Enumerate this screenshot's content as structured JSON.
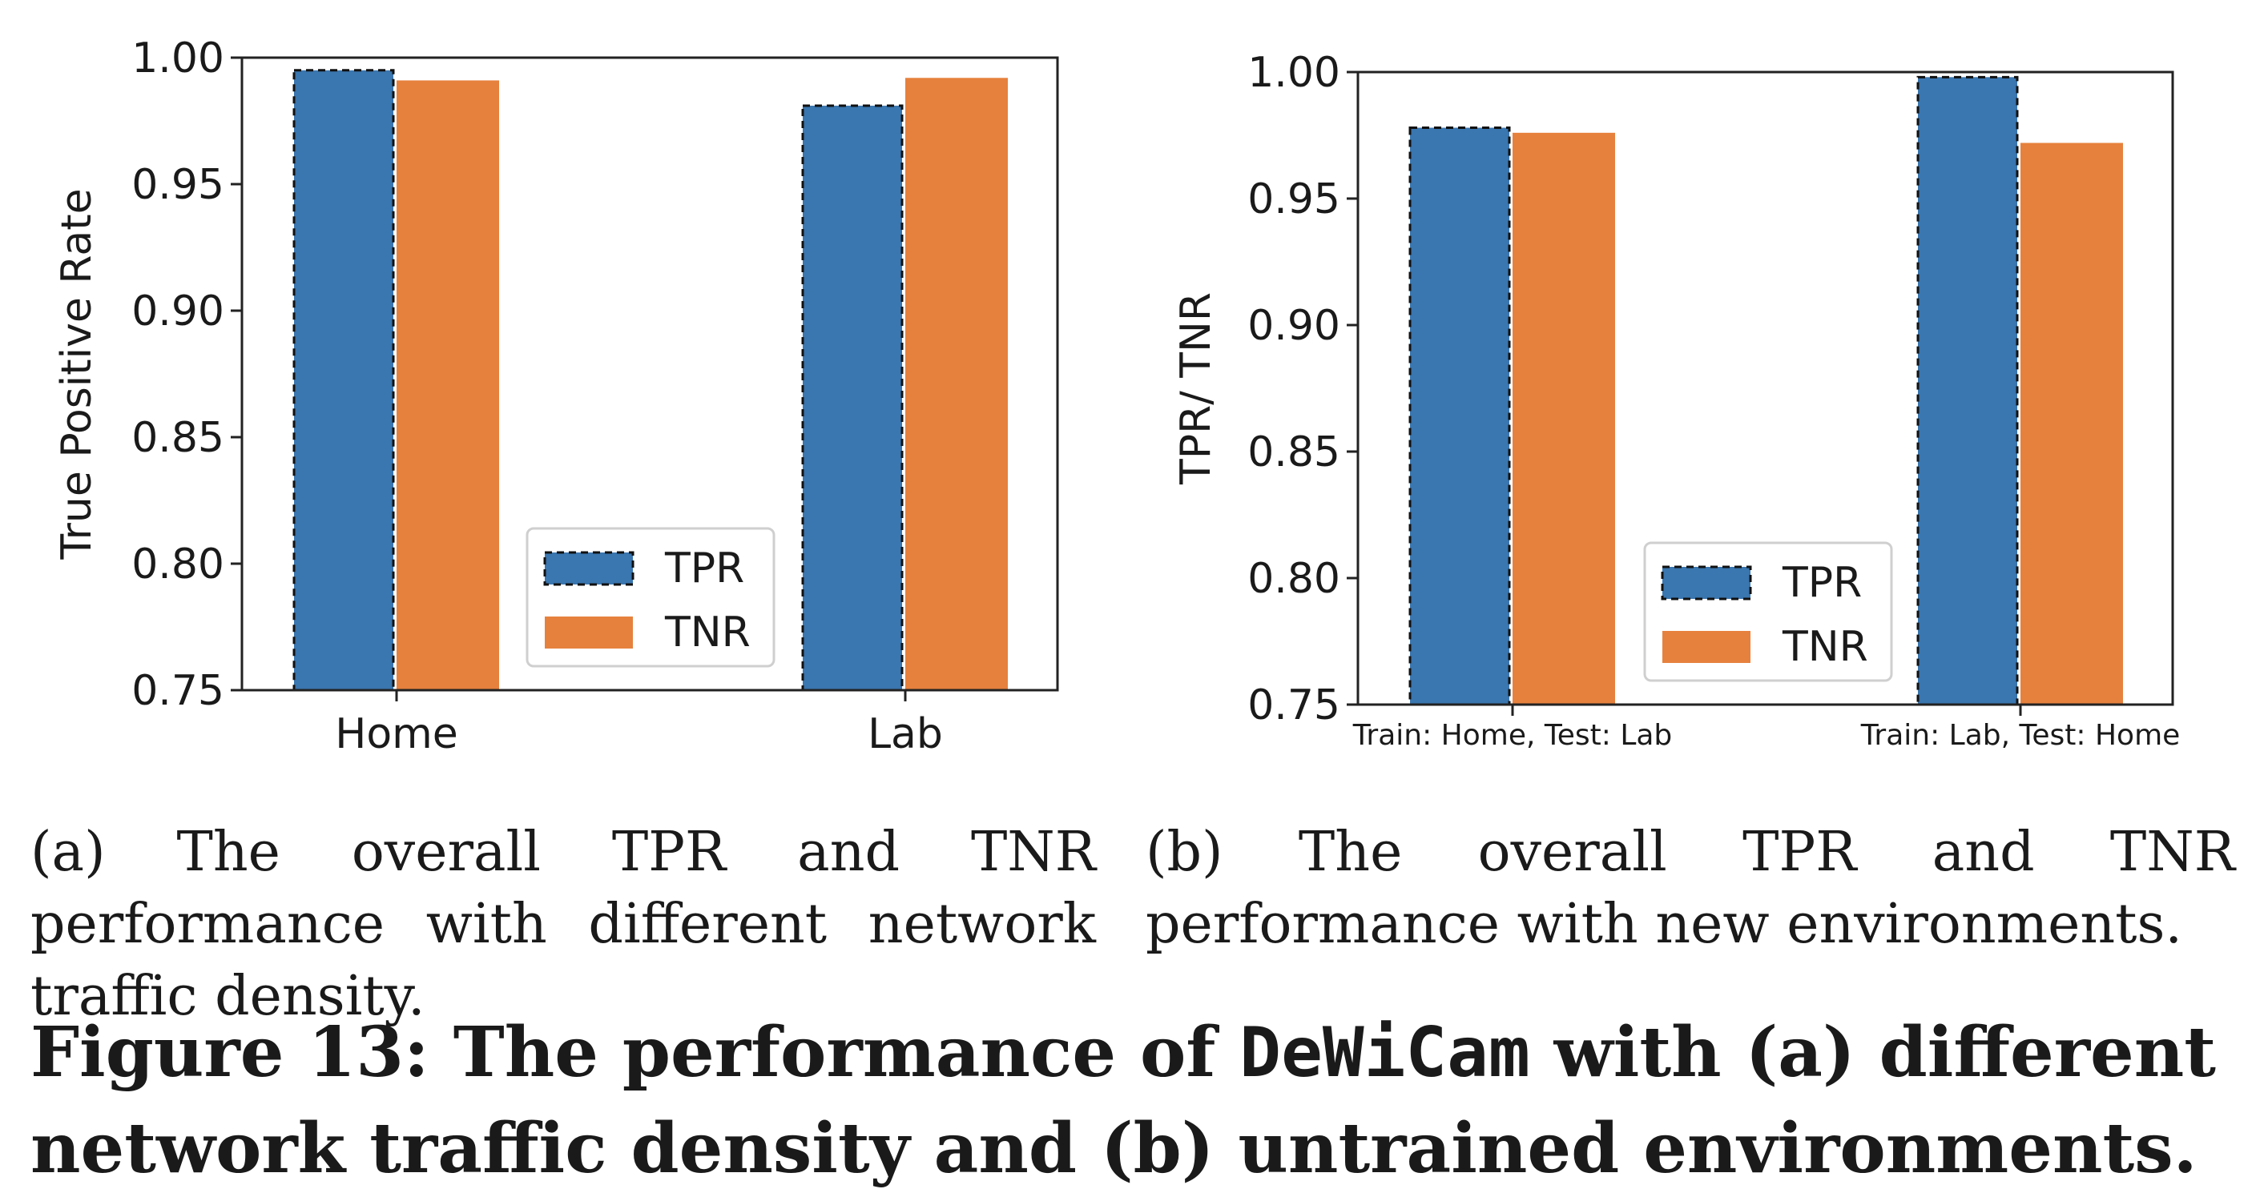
{
  "chart_data": [
    {
      "type": "bar",
      "categories": [
        "Home",
        "Lab"
      ],
      "series": [
        {
          "name": "TPR",
          "values": [
            0.995,
            0.981
          ]
        },
        {
          "name": "TNR",
          "values": [
            0.991,
            0.992
          ]
        }
      ],
      "ylabel": "True Positive Rate",
      "ylim": [
        0.75,
        1.0
      ],
      "yticks": [
        "0.75",
        "0.80",
        "0.85",
        "0.90",
        "0.95",
        "1.00"
      ],
      "legend_position": "lower-right",
      "grid": false
    },
    {
      "type": "bar",
      "categories": [
        "Train: Home, Test: Lab",
        "Train: Lab, Test: Home"
      ],
      "series": [
        {
          "name": "TPR",
          "values": [
            0.978,
            0.998
          ]
        },
        {
          "name": "TNR",
          "values": [
            0.976,
            0.972
          ]
        }
      ],
      "ylabel": "TPR/ TNR",
      "ylim": [
        0.75,
        1.0
      ],
      "yticks": [
        "0.75",
        "0.80",
        "0.85",
        "0.90",
        "0.95",
        "1.00"
      ],
      "legend_position": "lower-right",
      "grid": false
    }
  ],
  "colors": {
    "tpr": "#3a76af",
    "tnr": "#e6813d"
  },
  "captions": {
    "a": "(a) The overall TPR and TNR performance with different network traffic density.",
    "b": "(b) The overall TPR and TNR performance with new environments.",
    "figure_prefix": "Figure 13: The performance of ",
    "figure_system": "DeWiCam",
    "figure_suffix": " with (a) different network traffic density and (b) untrained environments."
  }
}
